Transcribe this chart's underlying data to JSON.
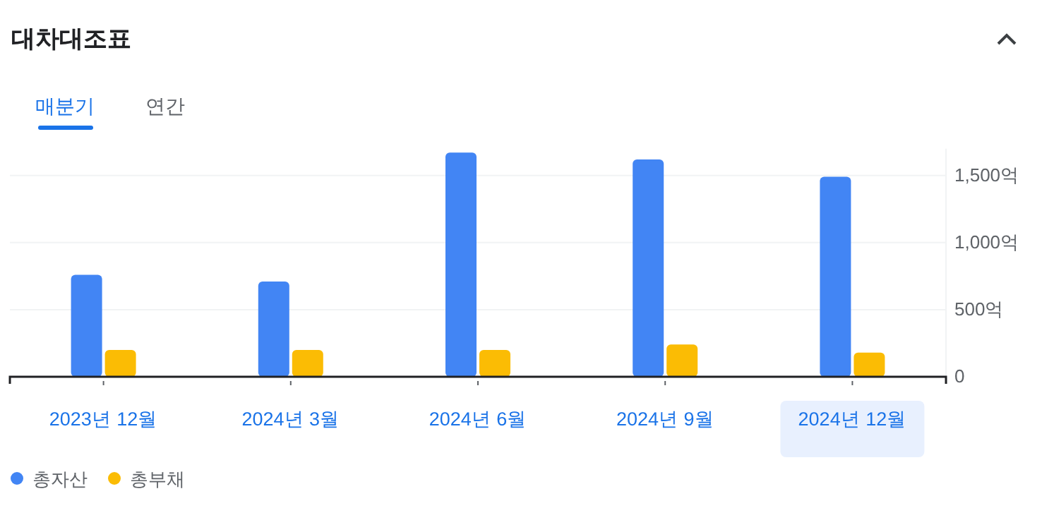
{
  "chart_data": {
    "type": "bar",
    "title": "대차대조표",
    "annotations": [
      "매분기",
      "연간"
    ],
    "categories": [
      "2023년 12월",
      "2024년 3월",
      "2024년 6월",
      "2024년 9월",
      "2024년 12월"
    ],
    "series": [
      {
        "name": "총자산",
        "color": "#4285f4",
        "values": [
          760,
          710,
          1670,
          1620,
          1490
        ]
      },
      {
        "name": "총부채",
        "color": "#fbbc04",
        "values": [
          200,
          200,
          200,
          240,
          180
        ]
      }
    ],
    "ylim": [
      0,
      1700
    ],
    "yticks": [
      0,
      {
        "value": 500,
        "label": "500억"
      },
      {
        "value": 1000,
        "label": "1,000억"
      },
      {
        "value": 1500,
        "label": "1,500억"
      }
    ],
    "grid": "y",
    "legend": "bottom left"
  }
}
